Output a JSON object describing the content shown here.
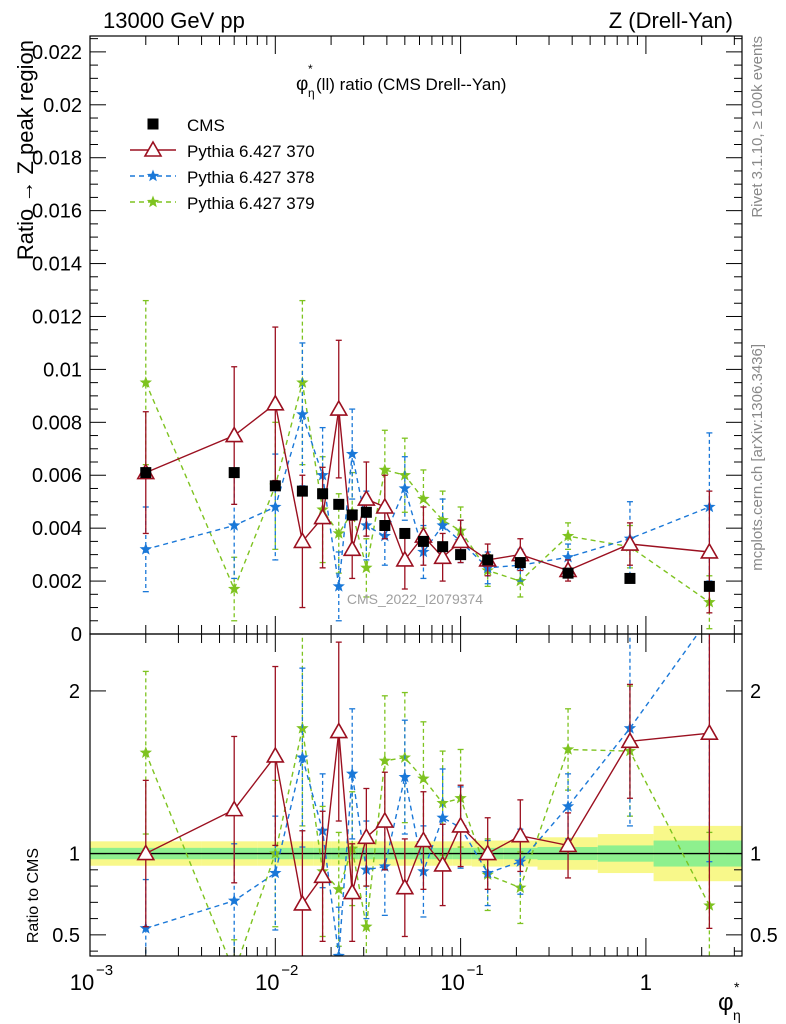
{
  "header": {
    "left": "13000 GeV pp",
    "right": "Z (Drell-Yan)"
  },
  "side_labels": {
    "rivet": "Rivet 3.1.10, ≥ 100k events",
    "mcplots": "mcplots.cern.ch [arXiv:1306.3436]"
  },
  "watermark": "CMS_2022_I2079374",
  "colors": {
    "cms": "#000000",
    "py370": "#9b1020",
    "py378": "#1a78d8",
    "py379": "#7ec320",
    "band_inner": "#8ef08e",
    "band_outer": "#f8f88a"
  },
  "chart_data": [
    {
      "type": "line",
      "panel": "main",
      "title": "φ*η(ll) ratio (CMS Drell--Yan)",
      "title_main": "φ",
      "title_sup": "*",
      "title_sub": "η",
      "title_rest": "(ll) ratio (CMS Drell--Yan)",
      "ylabel": "Ratio → Z peak region",
      "xscale": "log",
      "xlim": [
        0.001,
        3.3
      ],
      "ylim": [
        0,
        0.0226
      ],
      "yticks": [
        0,
        0.002,
        0.004,
        0.006,
        0.008,
        0.01,
        0.012,
        0.014,
        0.016,
        0.018,
        0.02,
        0.022
      ],
      "ytick_labels": [
        "0",
        "0.002",
        "0.004",
        "0.006",
        "0.008",
        "0.01",
        "0.012",
        "0.014",
        "0.016",
        "0.018",
        "0.02",
        "0.022"
      ],
      "legend_position": "top-left",
      "series": [
        {
          "name": "CMS",
          "key": "cms",
          "marker": "square",
          "x": [
            0.002,
            0.006,
            0.01,
            0.014,
            0.018,
            0.022,
            0.026,
            0.031,
            0.039,
            0.05,
            0.063,
            0.08,
            0.1,
            0.14,
            0.21,
            0.38,
            0.82,
            2.2
          ],
          "y": [
            0.0061,
            0.0061,
            0.0056,
            0.0054,
            0.0053,
            0.0049,
            0.0045,
            0.0046,
            0.0041,
            0.0038,
            0.0035,
            0.0033,
            0.003,
            0.0028,
            0.0027,
            0.0023,
            0.0021,
            0.0018
          ]
        },
        {
          "name": "Pythia 6.427 370",
          "key": "py370",
          "marker": "triangle",
          "line": "solid",
          "x": [
            0.002,
            0.006,
            0.01,
            0.014,
            0.018,
            0.022,
            0.026,
            0.031,
            0.039,
            0.05,
            0.063,
            0.08,
            0.1,
            0.14,
            0.21,
            0.38,
            0.82,
            2.2
          ],
          "y": [
            0.0061,
            0.0075,
            0.0087,
            0.0035,
            0.0044,
            0.0085,
            0.0032,
            0.0051,
            0.0048,
            0.0028,
            0.0037,
            0.0029,
            0.0035,
            0.0028,
            0.003,
            0.0024,
            0.0034,
            0.0031
          ],
          "yerr": [
            0.0023,
            0.0026,
            0.0029,
            0.0025,
            0.0019,
            0.0026,
            0.0011,
            0.0014,
            0.0012,
            0.0011,
            0.0011,
            0.0009,
            0.0008,
            0.0006,
            0.0006,
            0.0004,
            0.0008,
            0.0023
          ]
        },
        {
          "name": "Pythia 6.427 378",
          "key": "py378",
          "marker": "star",
          "line": "dashed",
          "x": [
            0.002,
            0.006,
            0.01,
            0.014,
            0.018,
            0.022,
            0.026,
            0.031,
            0.039,
            0.05,
            0.063,
            0.08,
            0.1,
            0.14,
            0.21,
            0.38,
            0.82,
            2.2
          ],
          "y": [
            0.0032,
            0.0041,
            0.0048,
            0.0083,
            0.006,
            0.0018,
            0.0068,
            0.0041,
            0.0037,
            0.0055,
            0.0031,
            0.0041,
            0.0035,
            0.0025,
            0.0026,
            0.0029,
            0.0036,
            0.0048
          ],
          "yerr": [
            0.0016,
            0.002,
            0.002,
            0.0027,
            0.0018,
            0.0013,
            0.0017,
            0.0013,
            0.0011,
            0.0012,
            0.001,
            0.001,
            0.0008,
            0.0006,
            0.0006,
            0.0005,
            0.0014,
            0.0028
          ]
        },
        {
          "name": "Pythia 6.427 379",
          "key": "py379",
          "marker": "star",
          "line": "dashed",
          "x": [
            0.002,
            0.006,
            0.01,
            0.014,
            0.018,
            0.022,
            0.026,
            0.031,
            0.039,
            0.05,
            0.063,
            0.08,
            0.1,
            0.14,
            0.21,
            0.38,
            0.82,
            2.2
          ],
          "y": [
            0.0095,
            0.0017,
            0.0056,
            0.0095,
            0.0047,
            0.0038,
            0.0046,
            0.0025,
            0.0062,
            0.006,
            0.0051,
            0.0043,
            0.0039,
            0.0024,
            0.002,
            0.0037,
            0.0033,
            0.0012
          ],
          "yerr": [
            0.0031,
            0.0012,
            0.0024,
            0.0031,
            0.002,
            0.0015,
            0.0015,
            0.0011,
            0.0015,
            0.0014,
            0.0011,
            0.0011,
            0.0009,
            0.0006,
            0.0006,
            0.0005,
            0.0008,
            0.001
          ]
        }
      ]
    },
    {
      "type": "line",
      "panel": "ratio",
      "ylabel": "Ratio to CMS",
      "xlabel_main": "φ",
      "xlabel_sup": "*",
      "xlabel_sub": "η",
      "xscale": "log",
      "xlim": [
        0.001,
        3.3
      ],
      "ylim": [
        0.37,
        2.35
      ],
      "yticks": [
        0.5,
        1,
        2
      ],
      "ytick_labels": [
        "0.5",
        "1",
        "2"
      ],
      "xticks": [
        0.001,
        0.01,
        0.1,
        1
      ],
      "xtick_labels": [
        {
          "base": "10",
          "exp": "−3"
        },
        {
          "base": "10",
          "exp": "−2"
        },
        {
          "base": "10",
          "exp": "−1"
        },
        {
          "base": "1",
          "exp": ""
        }
      ],
      "band": {
        "edges": [
          0.001,
          0.004,
          0.008,
          0.012,
          0.016,
          0.02,
          0.024,
          0.028,
          0.034,
          0.044,
          0.056,
          0.07,
          0.09,
          0.115,
          0.17,
          0.26,
          0.55,
          1.1,
          3.3
        ],
        "inner": [
          0.035,
          0.035,
          0.035,
          0.035,
          0.035,
          0.035,
          0.035,
          0.035,
          0.035,
          0.035,
          0.035,
          0.035,
          0.035,
          0.035,
          0.035,
          0.04,
          0.05,
          0.08
        ],
        "outer": [
          0.075,
          0.075,
          0.075,
          0.075,
          0.075,
          0.075,
          0.075,
          0.075,
          0.075,
          0.075,
          0.075,
          0.075,
          0.075,
          0.08,
          0.08,
          0.1,
          0.12,
          0.17
        ]
      },
      "series": [
        {
          "name": "Pythia 6.427 370",
          "key": "py370",
          "marker": "triangle",
          "line": "solid",
          "x": [
            0.002,
            0.006,
            0.01,
            0.014,
            0.018,
            0.022,
            0.026,
            0.031,
            0.039,
            0.05,
            0.063,
            0.08,
            0.1,
            0.14,
            0.21,
            0.38,
            0.82,
            2.2
          ],
          "y": [
            1.0,
            1.27,
            1.6,
            0.69,
            0.86,
            1.75,
            0.76,
            1.1,
            1.2,
            0.79,
            1.08,
            0.93,
            1.17,
            1.0,
            1.11,
            1.05,
            1.69,
            1.74
          ],
          "yerr": [
            0.45,
            0.45,
            0.55,
            0.45,
            0.4,
            0.55,
            0.3,
            0.3,
            0.3,
            0.3,
            0.3,
            0.25,
            0.25,
            0.22,
            0.22,
            0.2,
            0.35,
            1.2
          ]
        },
        {
          "name": "Pythia 6.427 378",
          "key": "py378",
          "marker": "star",
          "line": "dashed",
          "x": [
            0.002,
            0.006,
            0.01,
            0.014,
            0.018,
            0.022,
            0.026,
            0.031,
            0.039,
            0.05,
            0.063,
            0.08,
            0.1,
            0.14,
            0.21,
            0.38,
            0.82,
            2.2
          ],
          "y": [
            0.54,
            0.71,
            0.88,
            1.59,
            1.14,
            0.37,
            1.49,
            0.9,
            0.92,
            1.47,
            0.89,
            1.22,
            1.16,
            0.88,
            0.95,
            1.29,
            1.77,
            2.45
          ],
          "yerr": [
            0.3,
            0.35,
            0.35,
            0.55,
            0.35,
            0.3,
            0.4,
            0.3,
            0.3,
            0.35,
            0.28,
            0.3,
            0.25,
            0.2,
            0.2,
            0.2,
            0.6,
            1.5
          ]
        },
        {
          "name": "Pythia 6.427 379",
          "key": "py379",
          "marker": "star",
          "line": "dashed",
          "x": [
            0.002,
            0.006,
            0.01,
            0.014,
            0.018,
            0.022,
            0.026,
            0.031,
            0.039,
            0.05,
            0.063,
            0.08,
            0.1,
            0.14,
            0.21,
            0.38,
            0.82,
            2.2
          ],
          "y": [
            1.62,
            0.27,
            1.0,
            1.77,
            0.89,
            0.78,
            1.03,
            0.55,
            1.57,
            1.59,
            1.46,
            1.31,
            1.34,
            0.87,
            0.79,
            1.64,
            1.63,
            0.68
          ],
          "yerr": [
            0.5,
            0.2,
            0.45,
            0.6,
            0.4,
            0.35,
            0.35,
            0.25,
            0.4,
            0.4,
            0.35,
            0.32,
            0.3,
            0.22,
            0.22,
            0.25,
            0.4,
            0.45
          ]
        }
      ]
    }
  ]
}
